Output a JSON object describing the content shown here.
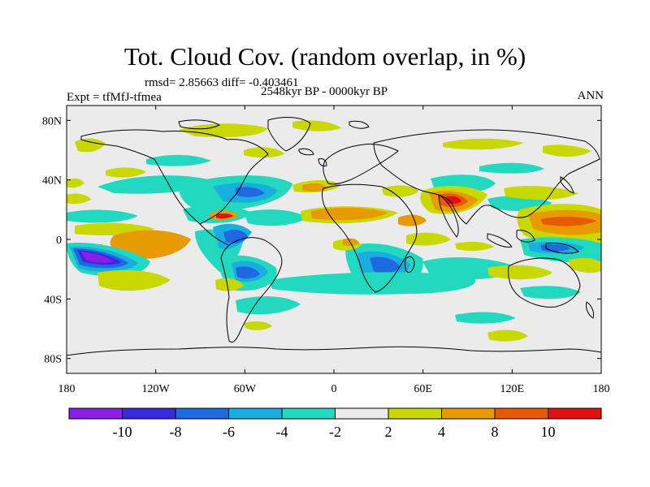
{
  "title": "Tot. Cloud Cov. (random overlap, in %)",
  "stats": "rmsd= 2.85663 diff= -0.403461",
  "experiment": "Expt = tfMfJ-tfmea",
  "period": "2548kyr BP - 0000kyr BP",
  "season": "ANN",
  "lat_ticks": [
    {
      "label": "80N",
      "lat": 80
    },
    {
      "label": "40N",
      "lat": 40
    },
    {
      "label": "0",
      "lat": 0
    },
    {
      "label": "40S",
      "lat": -40
    },
    {
      "label": "80S",
      "lat": -80
    }
  ],
  "lon_ticks": [
    {
      "label": "180",
      "lon": -180
    },
    {
      "label": "120W",
      "lon": -120
    },
    {
      "label": "60W",
      "lon": -60
    },
    {
      "label": "0",
      "lon": 0
    },
    {
      "label": "60E",
      "lon": 60
    },
    {
      "label": "120E",
      "lon": 120
    },
    {
      "label": "180",
      "lon": 180
    }
  ],
  "colorbar": {
    "colors": [
      "#8a1fe6",
      "#3a28e0",
      "#1f68e0",
      "#19aee0",
      "#22d9c0",
      "#ebebeb",
      "#c8d800",
      "#e89b00",
      "#e85a00",
      "#e01010"
    ],
    "labels": [
      "-10",
      "-8",
      "-6",
      "-4",
      "-2",
      "2",
      "4",
      "8",
      "10"
    ]
  },
  "map_colors": {
    "background": "#ebebeb",
    "coastline": "#000000"
  }
}
